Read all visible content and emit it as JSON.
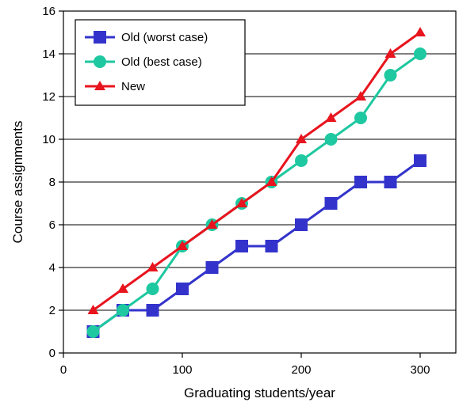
{
  "chart_data": {
    "type": "line",
    "xlabel": "Graduating students/year",
    "ylabel": "Course assignments",
    "xlim": [
      0,
      330
    ],
    "ylim": [
      0,
      16
    ],
    "x_ticks": [
      0,
      100,
      200,
      300
    ],
    "y_ticks": [
      0,
      2,
      4,
      6,
      8,
      10,
      12,
      14,
      16
    ],
    "grid": "horizontal",
    "legend_position": "top-left",
    "x": [
      25,
      50,
      75,
      100,
      125,
      150,
      175,
      200,
      225,
      250,
      275,
      300
    ],
    "series": [
      {
        "name": "Old (worst case)",
        "color": "#3333cc",
        "marker": "square",
        "values": [
          1,
          2,
          2,
          3,
          4,
          5,
          5,
          6,
          7,
          8,
          8,
          9
        ]
      },
      {
        "name": "Old (best case)",
        "color": "#1ec8a0",
        "marker": "circle",
        "values": [
          1,
          2,
          3,
          5,
          6,
          7,
          8,
          9,
          10,
          11,
          13,
          14
        ]
      },
      {
        "name": "New",
        "color": "#e8141e",
        "marker": "triangle",
        "values": [
          2,
          3,
          4,
          5,
          6,
          7,
          8,
          10,
          11,
          12,
          14,
          15
        ]
      }
    ]
  }
}
